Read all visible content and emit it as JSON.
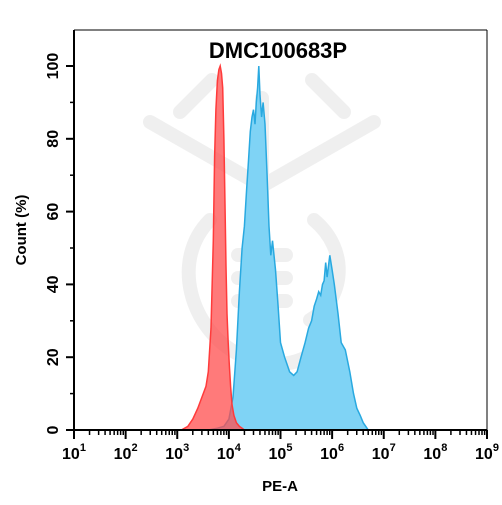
{
  "chart_data": {
    "type": "area",
    "title": "DMC100683P",
    "xlabel": "PE-A",
    "ylabel": "Count  (%)",
    "x_scale": "log",
    "xlim": [
      10,
      1000000000
    ],
    "ylim": [
      0,
      100
    ],
    "x_ticks": [
      {
        "base": "10",
        "exp": "1"
      },
      {
        "base": "10",
        "exp": "2"
      },
      {
        "base": "10",
        "exp": "3"
      },
      {
        "base": "10",
        "exp": "4"
      },
      {
        "base": "10",
        "exp": "5"
      },
      {
        "base": "10",
        "exp": "6"
      },
      {
        "base": "10",
        "exp": "7"
      },
      {
        "base": "10",
        "exp": "8"
      },
      {
        "base": "10",
        "exp": "9"
      }
    ],
    "y_ticks": [
      "0",
      "20",
      "40",
      "60",
      "80",
      "100"
    ],
    "grid": false,
    "legend": "none",
    "watermark": "DMC logo",
    "series": [
      {
        "color": "#ff3b3b",
        "fill": "#ff4d4d",
        "x": [
          1200,
          1600,
          2000,
          2500,
          3000,
          3600,
          4000,
          4500,
          5000,
          5300,
          5600,
          6000,
          6400,
          6800,
          7200,
          7600,
          8000,
          8400,
          8800,
          9200,
          9700,
          10200,
          10800,
          11500,
          12500,
          14000,
          16000,
          18000,
          20000
        ],
        "y": [
          0,
          1,
          3,
          6,
          9,
          12,
          16,
          28,
          52,
          75,
          88,
          96,
          99,
          100,
          98,
          94,
          80,
          62,
          45,
          32,
          24,
          18,
          12,
          7,
          4,
          2,
          1,
          0.5,
          0
        ]
      },
      {
        "color": "#29a9e0",
        "fill": "#7fd3f5",
        "x": [
          4000,
          6000,
          8000,
          10000,
          12000,
          14000,
          16000,
          18000,
          20000,
          22000,
          24000,
          26000,
          28000,
          30000,
          32000,
          34000,
          36000,
          38000,
          40000,
          43000,
          46000,
          50000,
          55000,
          60000,
          65000,
          70000,
          80000,
          90000,
          100000,
          120000,
          150000,
          180000,
          210000,
          250000,
          300000,
          350000,
          400000,
          450000,
          500000,
          550000,
          600000,
          650000,
          700000,
          750000,
          800000,
          900000,
          1000000,
          1100000,
          1300000,
          1500000,
          1800000,
          2200000,
          2600000,
          3000000,
          3500000,
          4000000,
          4500000,
          5000000
        ],
        "y": [
          0,
          0.5,
          1,
          3,
          9,
          22,
          38,
          50,
          56,
          66,
          74,
          82,
          86,
          88,
          84,
          90,
          94,
          100,
          92,
          86,
          90,
          84,
          70,
          56,
          48,
          52,
          44,
          34,
          24,
          20,
          16,
          15,
          16,
          20,
          24,
          28,
          30,
          34,
          36,
          38,
          37,
          40,
          41,
          46,
          42,
          48,
          44,
          40,
          32,
          24,
          22,
          16,
          10,
          6,
          4,
          2,
          1,
          0
        ]
      }
    ]
  }
}
